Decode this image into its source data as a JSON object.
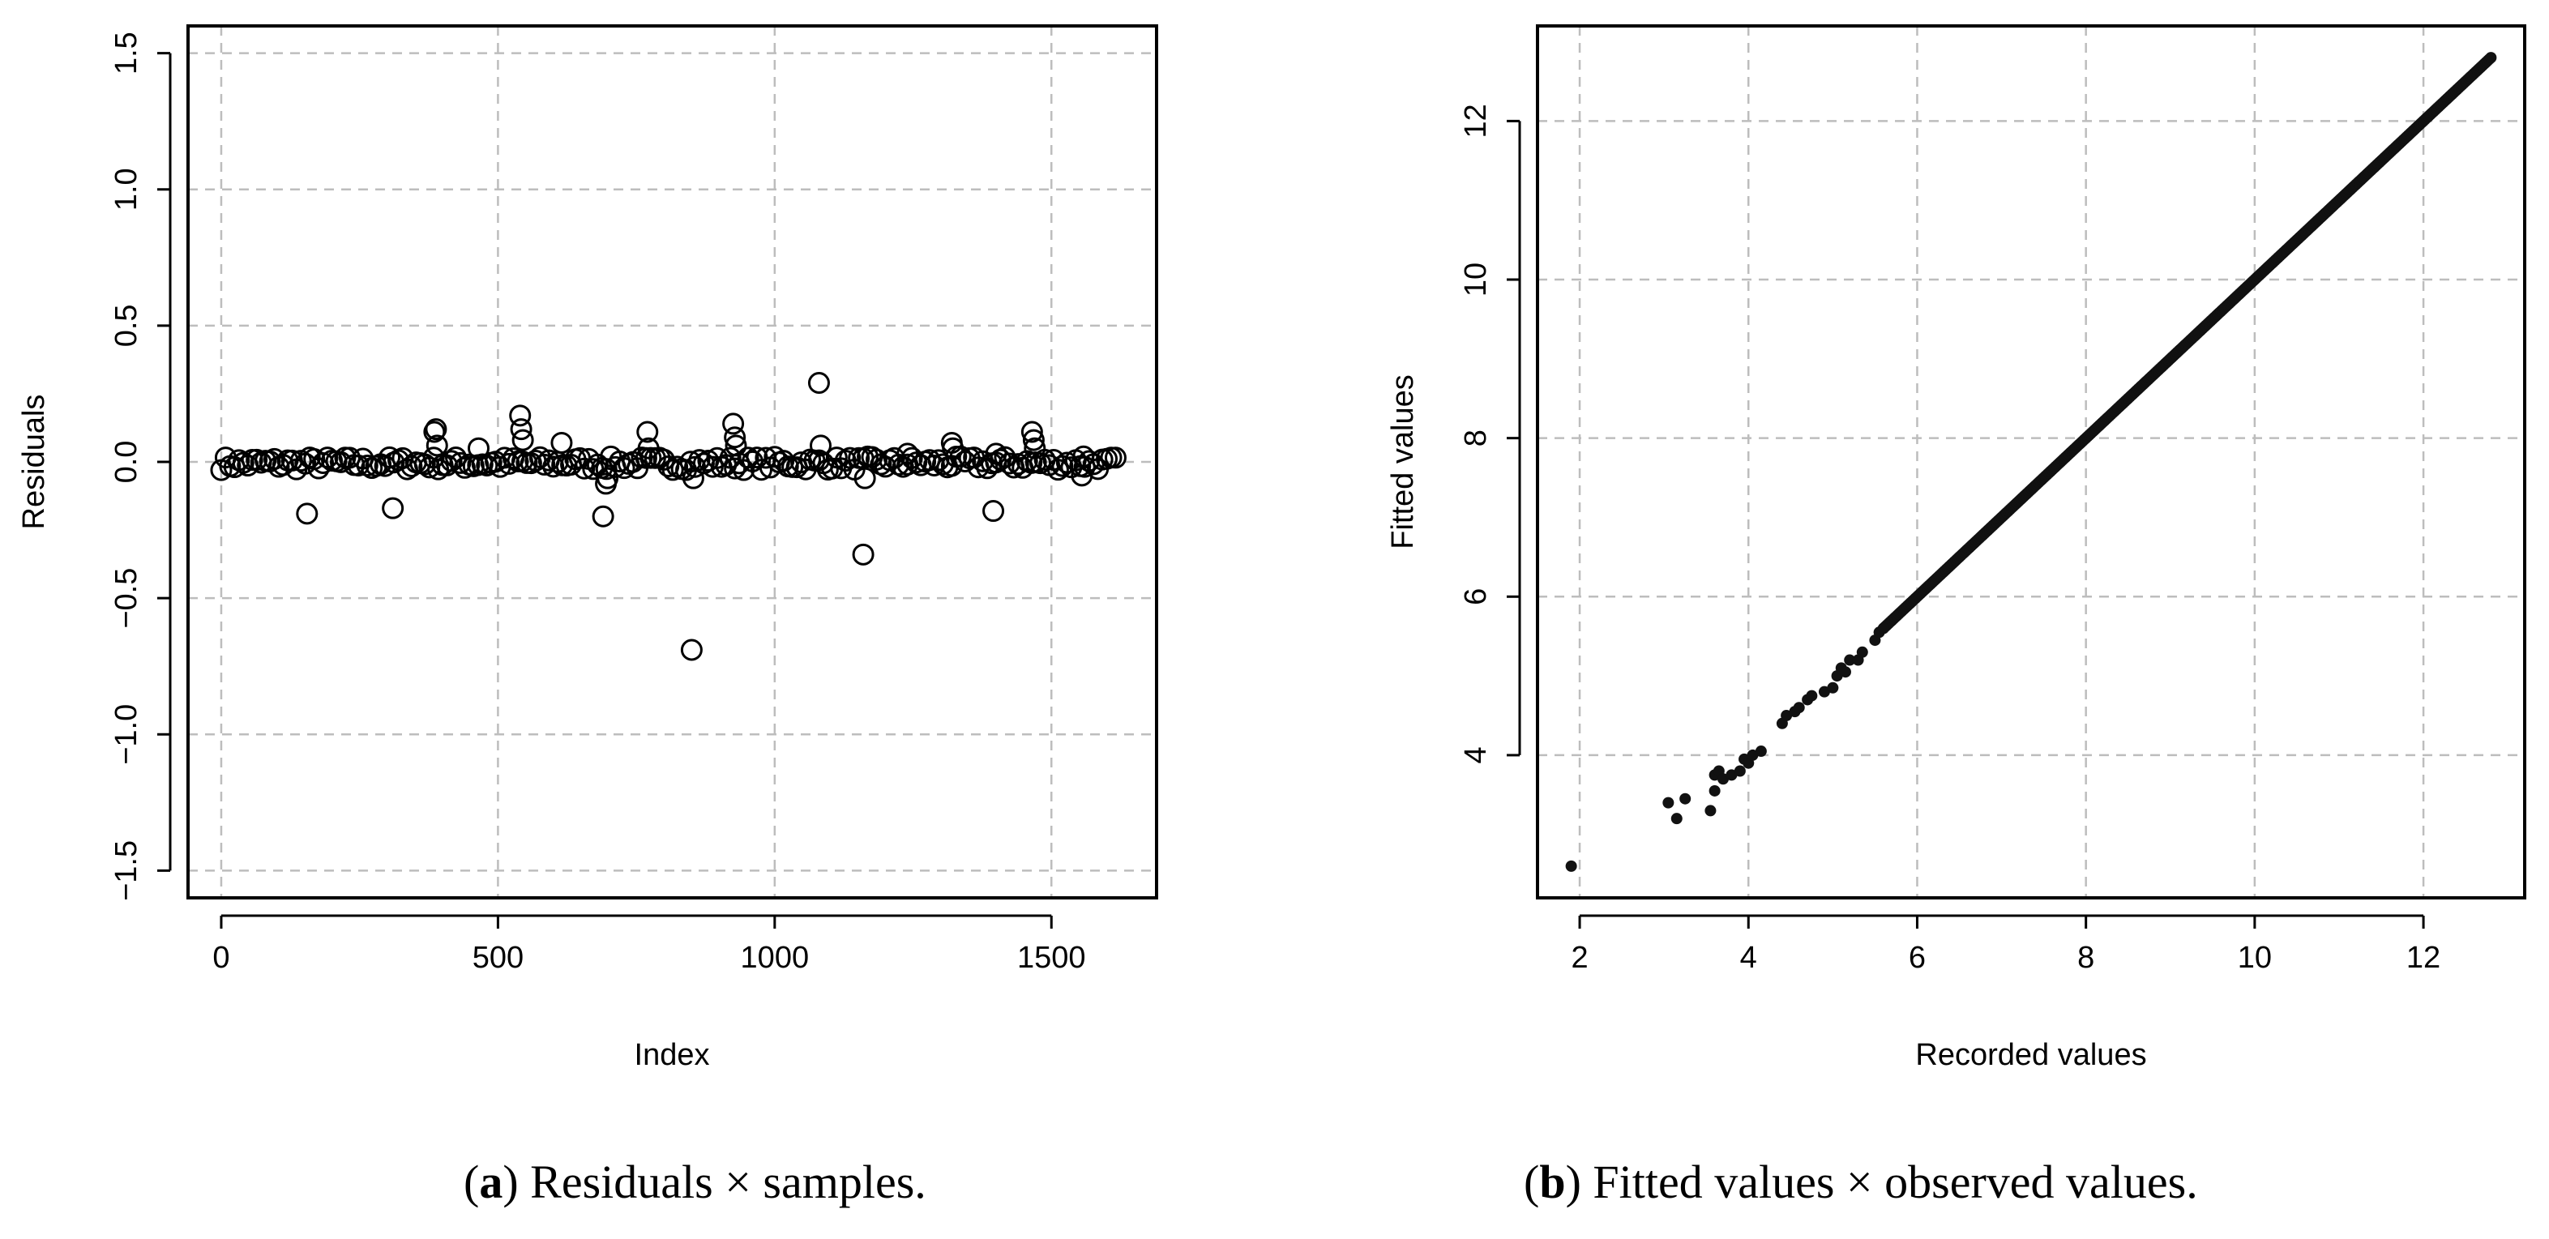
{
  "chart_data": [
    {
      "type": "scatter",
      "marker": "open-circle",
      "caption_letter": "a",
      "caption_text": "Residuals × samples.",
      "xlabel": "Index",
      "ylabel": "Residuals",
      "xlim": [
        -60,
        1690
      ],
      "ylim": [
        -1.6,
        1.6
      ],
      "xticks": [
        0,
        500,
        1000,
        1500
      ],
      "xtick_labels": [
        "0",
        "500",
        "1000",
        "1500"
      ],
      "yticks": [
        -1.5,
        -1.0,
        -0.5,
        0.0,
        0.5,
        1.0,
        1.5
      ],
      "ytick_labels": [
        "−1.5",
        "−1.0",
        "−0.5",
        "0.0",
        "0.5",
        "1.0",
        "1.5"
      ],
      "grid": true,
      "n_samples": 1620,
      "baseline_band": [
        -0.03,
        0.02
      ],
      "outliers": [
        {
          "x": 155,
          "y": -0.19
        },
        {
          "x": 310,
          "y": -0.17
        },
        {
          "x": 385,
          "y": 0.11
        },
        {
          "x": 388,
          "y": 0.12
        },
        {
          "x": 390,
          "y": 0.06
        },
        {
          "x": 465,
          "y": 0.05
        },
        {
          "x": 540,
          "y": 0.17
        },
        {
          "x": 542,
          "y": 0.12
        },
        {
          "x": 545,
          "y": 0.08
        },
        {
          "x": 615,
          "y": 0.07
        },
        {
          "x": 690,
          "y": -0.2
        },
        {
          "x": 695,
          "y": -0.08
        },
        {
          "x": 698,
          "y": -0.06
        },
        {
          "x": 770,
          "y": 0.11
        },
        {
          "x": 772,
          "y": 0.05
        },
        {
          "x": 850,
          "y": -0.69
        },
        {
          "x": 853,
          "y": -0.06
        },
        {
          "x": 925,
          "y": 0.14
        },
        {
          "x": 928,
          "y": 0.09
        },
        {
          "x": 930,
          "y": 0.06
        },
        {
          "x": 1080,
          "y": 0.29
        },
        {
          "x": 1083,
          "y": 0.06
        },
        {
          "x": 1160,
          "y": -0.34
        },
        {
          "x": 1163,
          "y": -0.06
        },
        {
          "x": 1240,
          "y": 0.03
        },
        {
          "x": 1320,
          "y": 0.07
        },
        {
          "x": 1322,
          "y": 0.05
        },
        {
          "x": 1395,
          "y": -0.18
        },
        {
          "x": 1400,
          "y": 0.03
        },
        {
          "x": 1465,
          "y": 0.11
        },
        {
          "x": 1468,
          "y": 0.08
        },
        {
          "x": 1470,
          "y": 0.05
        },
        {
          "x": 1555,
          "y": -0.05
        },
        {
          "x": 1558,
          "y": 0.02
        }
      ]
    },
    {
      "type": "scatter",
      "marker": "filled-dot",
      "caption_letter": "b",
      "caption_text": "Fitted values × observed values.",
      "xlabel": "Recorded values",
      "ylabel": "Fitted values",
      "xlim": [
        1.5,
        13.2
      ],
      "ylim": [
        2.2,
        13.2
      ],
      "xticks": [
        2,
        4,
        6,
        8,
        10,
        12
      ],
      "xtick_labels": [
        "2",
        "4",
        "6",
        "8",
        "10",
        "12"
      ],
      "yticks": [
        4,
        6,
        8,
        10,
        12
      ],
      "ytick_labels": [
        "4",
        "6",
        "8",
        "10",
        "12"
      ],
      "grid": true,
      "dense_line": {
        "from": 5.6,
        "to": 12.8,
        "slope": 1.0,
        "intercept": 0.0
      },
      "points": [
        {
          "x": 1.9,
          "y": 2.6
        },
        {
          "x": 3.05,
          "y": 3.4
        },
        {
          "x": 3.15,
          "y": 3.2
        },
        {
          "x": 3.25,
          "y": 3.45
        },
        {
          "x": 3.55,
          "y": 3.3
        },
        {
          "x": 3.6,
          "y": 3.55
        },
        {
          "x": 3.6,
          "y": 3.75
        },
        {
          "x": 3.65,
          "y": 3.8
        },
        {
          "x": 3.7,
          "y": 3.7
        },
        {
          "x": 3.8,
          "y": 3.75
        },
        {
          "x": 3.9,
          "y": 3.8
        },
        {
          "x": 3.95,
          "y": 3.95
        },
        {
          "x": 4.0,
          "y": 3.9
        },
        {
          "x": 4.05,
          "y": 4.0
        },
        {
          "x": 4.15,
          "y": 4.05
        },
        {
          "x": 4.4,
          "y": 4.4
        },
        {
          "x": 4.45,
          "y": 4.5
        },
        {
          "x": 4.55,
          "y": 4.55
        },
        {
          "x": 4.6,
          "y": 4.6
        },
        {
          "x": 4.7,
          "y": 4.7
        },
        {
          "x": 4.75,
          "y": 4.75
        },
        {
          "x": 4.9,
          "y": 4.8
        },
        {
          "x": 5.0,
          "y": 4.85
        },
        {
          "x": 5.05,
          "y": 5.0
        },
        {
          "x": 5.1,
          "y": 5.1
        },
        {
          "x": 5.15,
          "y": 5.05
        },
        {
          "x": 5.2,
          "y": 5.2
        },
        {
          "x": 5.3,
          "y": 5.2
        },
        {
          "x": 5.35,
          "y": 5.3
        },
        {
          "x": 5.5,
          "y": 5.45
        },
        {
          "x": 5.55,
          "y": 5.55
        },
        {
          "x": 5.6,
          "y": 5.6
        }
      ]
    }
  ]
}
